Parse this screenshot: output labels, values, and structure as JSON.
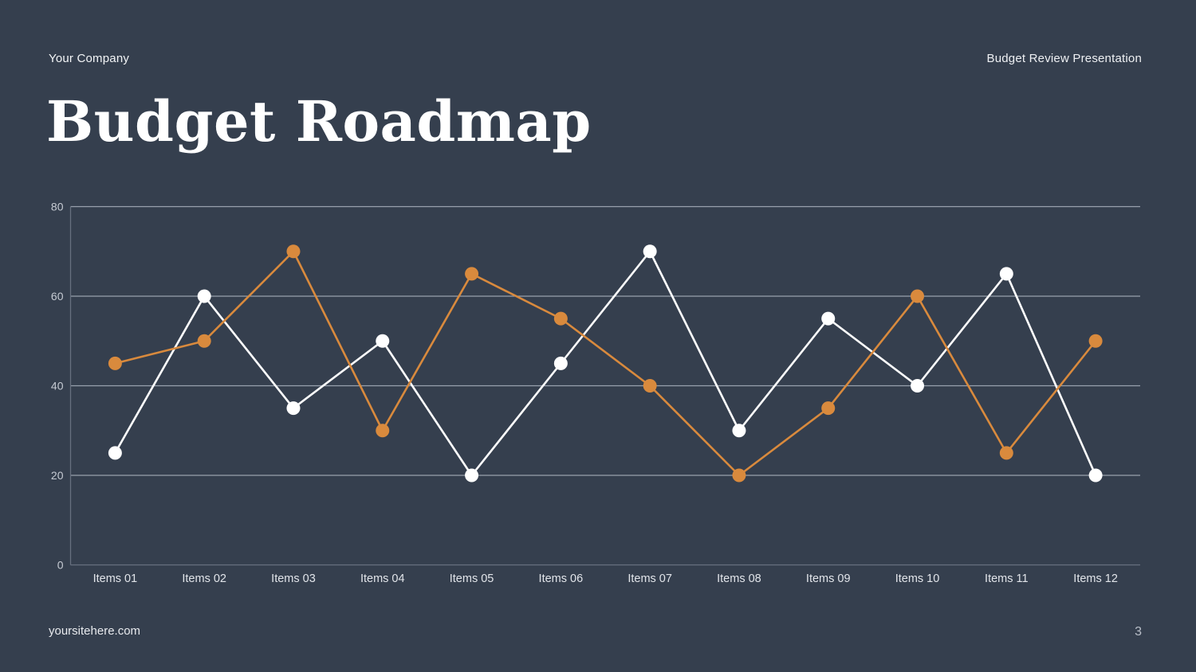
{
  "page": {
    "background_color": "#353f4e"
  },
  "header": {
    "company": "Your Company",
    "presentation": "Budget Review Presentation"
  },
  "title": "Budget Roadmap",
  "footer": {
    "site": "yoursitehere.com",
    "page_number": "3"
  },
  "chart_data": {
    "type": "line",
    "title": "",
    "xlabel": "",
    "ylabel": "",
    "categories": [
      "Items 01",
      "Items 02",
      "Items 03",
      "Items 04",
      "Items 05",
      "Items 06",
      "Items 07",
      "Items 08",
      "Items 09",
      "Items 10",
      "Items 11",
      "Items 12"
    ],
    "series": [
      {
        "name": "white-series",
        "color": "#ffffff",
        "values": [
          25,
          60,
          35,
          50,
          20,
          45,
          70,
          30,
          55,
          40,
          65,
          20
        ]
      },
      {
        "name": "orange-series",
        "color": "#d98a3d",
        "values": [
          45,
          50,
          70,
          30,
          65,
          55,
          40,
          20,
          35,
          60,
          25,
          50
        ]
      }
    ],
    "ylim": [
      0,
      80
    ],
    "yticks": [
      0,
      20,
      40,
      60,
      80
    ],
    "grid": true,
    "legend_position": "none",
    "gridline_color": "#99a1ad",
    "axis_color": "#67707f",
    "ytick_label_color": "#c6cbd3",
    "xtick_label_color": "#e2e5ea",
    "marker_radius": 8.5,
    "line_width": 2.6
  }
}
